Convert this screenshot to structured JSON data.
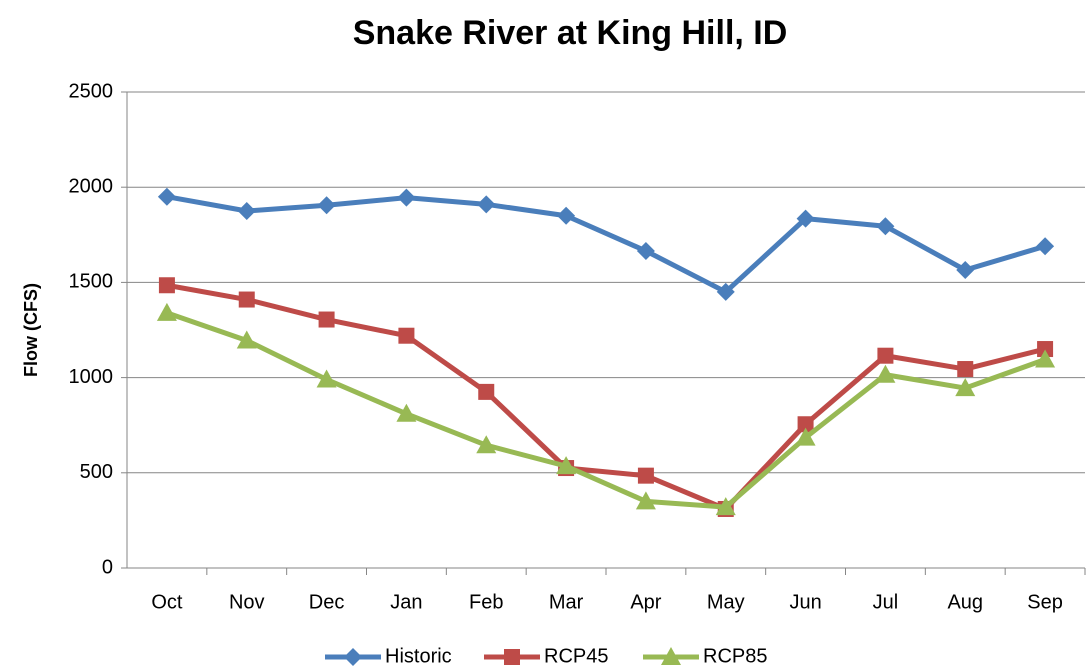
{
  "chart_data": {
    "type": "line",
    "title": "Snake River at King Hill, ID",
    "y_label": "Flow (CFS)",
    "categories": [
      "Oct",
      "Nov",
      "Dec",
      "Jan",
      "Feb",
      "Mar",
      "Apr",
      "May",
      "Jun",
      "Jul",
      "Aug",
      "Sep"
    ],
    "series": [
      {
        "name": "Historic",
        "color": "#4a7ebb",
        "marker": "diamond",
        "values": [
          1950,
          1875,
          1905,
          1945,
          1910,
          1850,
          1665,
          1450,
          1835,
          1795,
          1565,
          1690
        ]
      },
      {
        "name": "RCP45",
        "color": "#be4b48",
        "marker": "square",
        "values": [
          1485,
          1410,
          1305,
          1220,
          925,
          525,
          485,
          310,
          755,
          1115,
          1045,
          1150
        ]
      },
      {
        "name": "RCP85",
        "color": "#98b954",
        "marker": "triangle",
        "values": [
          1340,
          1195,
          990,
          810,
          645,
          535,
          350,
          320,
          685,
          1015,
          945,
          1095
        ]
      }
    ],
    "ylim": [
      0,
      2500
    ],
    "yticks": [
      0,
      500,
      1000,
      1500,
      2000,
      2500
    ],
    "grid": true,
    "legend": "bottom"
  }
}
